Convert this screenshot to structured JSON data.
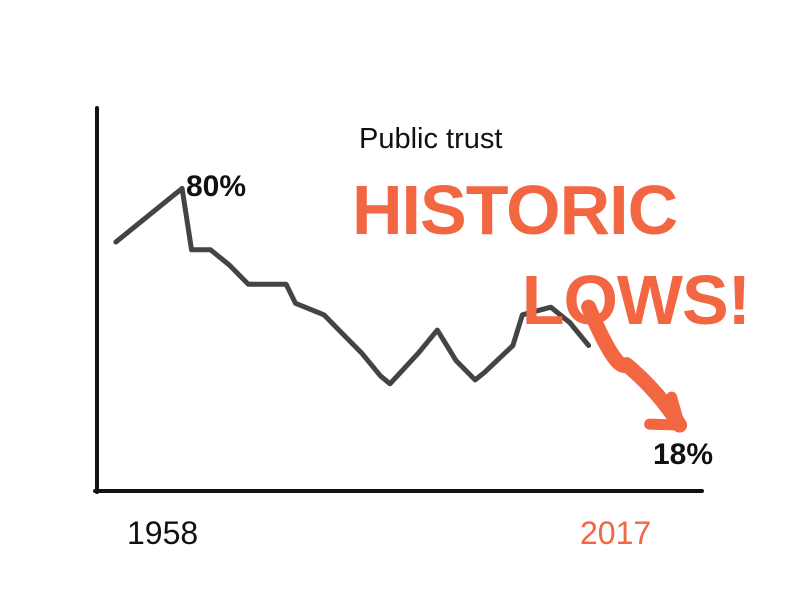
{
  "chart_data": {
    "type": "line",
    "subtitle": "Public trust",
    "headline_lines": [
      "HISTORIC",
      "LOWS!"
    ],
    "x_start_label": "1958",
    "x_end_label": "2017",
    "peak_label": "80%",
    "end_label": "18%",
    "xlim": [
      1956,
      2020
    ],
    "ylim": [
      0,
      100
    ],
    "series": [
      {
        "x": [
          1958,
          1964,
          1965,
          1966,
          1968,
          1970,
          1972,
          1974,
          1976,
          1977,
          1980,
          1982,
          1984,
          1986,
          1987,
          1990,
          1992,
          1994,
          1996,
          1997,
          2000,
          2001,
          2004,
          2006,
          2008
        ],
        "y": [
          65,
          77,
          79,
          63,
          63,
          59,
          54,
          54,
          54,
          49,
          46,
          41,
          36,
          30,
          28,
          36,
          42,
          34,
          29,
          31,
          38,
          46,
          48,
          44,
          38
        ]
      }
    ],
    "trend_arrow": {
      "x": [
        2008,
        2012,
        2017
      ],
      "y": [
        48,
        33,
        18
      ]
    },
    "colors": {
      "line": "#444444",
      "accent": "#f26641",
      "axis": "#111111",
      "text": "#111111"
    }
  }
}
